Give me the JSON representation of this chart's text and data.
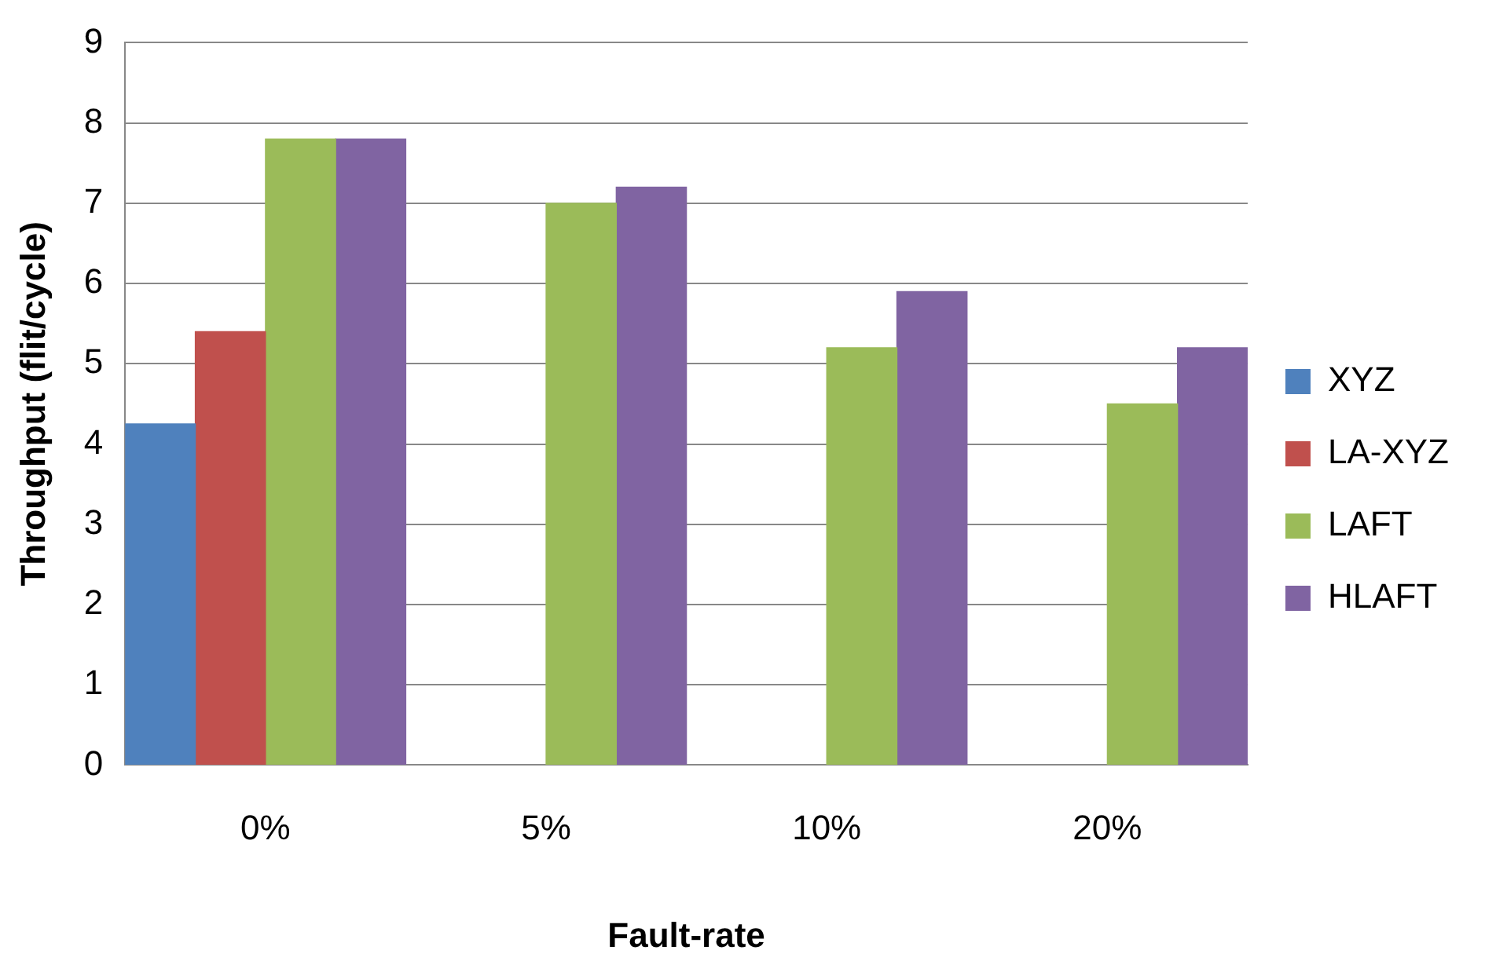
{
  "chart_data": {
    "type": "bar",
    "xlabel": "Fault-rate",
    "ylabel": "Throughput (flit/cycle)",
    "categories": [
      "0%",
      "5%",
      "10%",
      "20%"
    ],
    "series": [
      {
        "name": "XYZ",
        "color": "#4f81bd",
        "values": [
          4.25,
          null,
          null,
          null
        ]
      },
      {
        "name": "LA-XYZ",
        "color": "#c0504d",
        "values": [
          5.4,
          null,
          null,
          null
        ]
      },
      {
        "name": "LAFT",
        "color": "#9bbb59",
        "values": [
          7.8,
          7.0,
          5.2,
          4.5
        ]
      },
      {
        "name": "HLAFT",
        "color": "#8064a2",
        "values": [
          7.8,
          7.2,
          5.9,
          5.2
        ]
      }
    ],
    "ylim": [
      0,
      9
    ],
    "yticks": [
      0,
      1,
      2,
      3,
      4,
      5,
      6,
      7,
      8,
      9
    ],
    "grid": "y",
    "legend": "right"
  }
}
